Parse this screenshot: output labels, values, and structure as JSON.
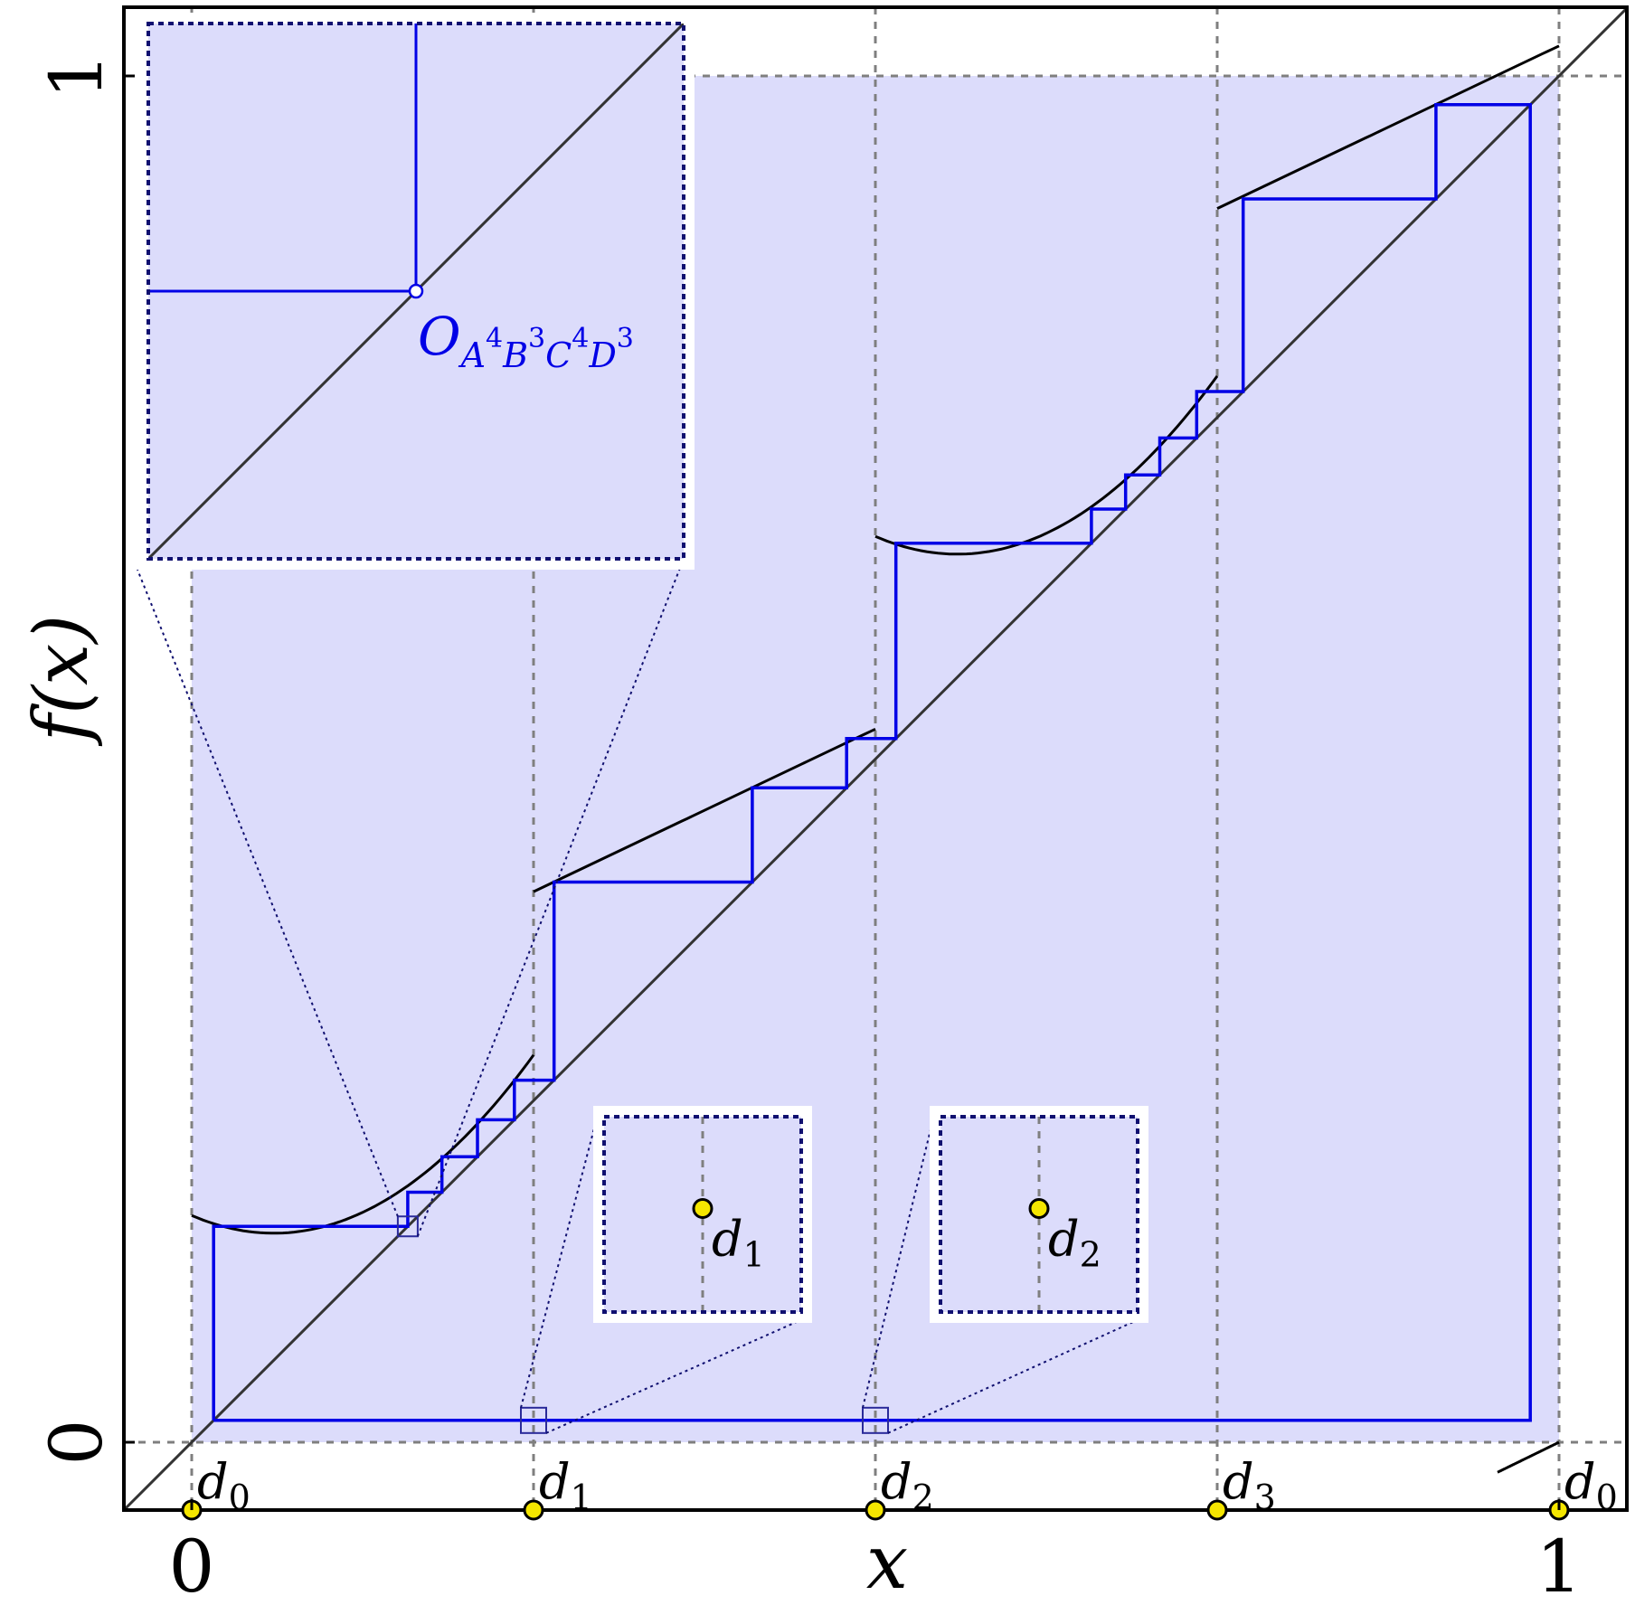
{
  "chart_data": {
    "type": "line",
    "xlabel": "x",
    "ylabel": "f(x)",
    "xlim": [
      -0.05,
      1.05
    ],
    "ylim": [
      -0.05,
      1.05
    ],
    "x_ticks": [
      {
        "value": 0,
        "label": "0"
      },
      {
        "value": 1,
        "label": "1"
      }
    ],
    "y_ticks": [
      {
        "value": 0,
        "label": "0"
      },
      {
        "value": 1,
        "label": "1"
      }
    ],
    "grid": "dashed lines at x = d_i and y = 0, 1",
    "region_fill": "#dcdcfb",
    "map_color": "#000000",
    "orbit_color": "#0000e6",
    "point_color": "#f5e600",
    "discontinuities": [
      {
        "x": 0.0,
        "label_base": "d",
        "label_sub": "0"
      },
      {
        "x": 0.25,
        "label_base": "d",
        "label_sub": "1"
      },
      {
        "x": 0.5,
        "label_base": "d",
        "label_sub": "2"
      },
      {
        "x": 0.75,
        "label_base": "d",
        "label_sub": "3"
      },
      {
        "x": 1.0,
        "label_base": "d",
        "label_sub": "0"
      }
    ],
    "diagonal": [
      [
        -0.05,
        -0.05
      ],
      [
        1.05,
        1.05
      ]
    ],
    "map_branches": [
      {
        "name": "A",
        "kind": "quadratic",
        "x": [
          0.0,
          0.25
        ],
        "f_at_0": 0.166,
        "vertex_x": 0.06,
        "vertex_y": 0.153,
        "f_at_end": 0.291
      },
      {
        "name": "B",
        "kind": "linear",
        "x": [
          0.25,
          0.5
        ],
        "y": [
          0.403,
          0.522
        ]
      },
      {
        "name": "C",
        "kind": "quadratic",
        "x": [
          0.5,
          0.75
        ],
        "f_at_0": 0.663,
        "vertex_x": 0.56,
        "vertex_y": 0.65,
        "f_at_end": 0.791
      },
      {
        "name": "D",
        "kind": "linear",
        "x": [
          0.75,
          1.0
        ],
        "y": [
          0.903,
          1.022
        ]
      },
      {
        "name": "wrap",
        "kind": "linear",
        "x": [
          0.955,
          1.0
        ],
        "y": [
          -0.022,
          0.0
        ]
      }
    ],
    "cobweb_orbit": {
      "label": "O",
      "label_subscript": [
        {
          "letter": "A",
          "power": "4"
        },
        {
          "letter": "B",
          "power": "3"
        },
        {
          "letter": "C",
          "power": "4"
        },
        {
          "letter": "D",
          "power": "3"
        }
      ],
      "points": [
        [
          0.016,
          0.016
        ],
        [
          0.016,
          0.158
        ],
        [
          0.158,
          0.158
        ],
        [
          0.158,
          0.183
        ],
        [
          0.183,
          0.183
        ],
        [
          0.183,
          0.209
        ],
        [
          0.209,
          0.209
        ],
        [
          0.209,
          0.236
        ],
        [
          0.236,
          0.236
        ],
        [
          0.236,
          0.265
        ],
        [
          0.265,
          0.265
        ],
        [
          0.265,
          0.41
        ],
        [
          0.41,
          0.41
        ],
        [
          0.41,
          0.479
        ],
        [
          0.479,
          0.479
        ],
        [
          0.479,
          0.515
        ],
        [
          0.515,
          0.515
        ],
        [
          0.515,
          0.658
        ],
        [
          0.658,
          0.658
        ],
        [
          0.658,
          0.683
        ],
        [
          0.683,
          0.683
        ],
        [
          0.683,
          0.708
        ],
        [
          0.708,
          0.708
        ],
        [
          0.708,
          0.735
        ],
        [
          0.735,
          0.735
        ],
        [
          0.735,
          0.769
        ],
        [
          0.769,
          0.769
        ],
        [
          0.769,
          0.91
        ],
        [
          0.91,
          0.91
        ],
        [
          0.91,
          0.979
        ],
        [
          0.979,
          0.979
        ],
        [
          0.979,
          0.016
        ],
        [
          0.016,
          0.016
        ]
      ]
    },
    "insets": [
      {
        "name": "orbit-zoom",
        "center": [
          0.158,
          0.158
        ],
        "half_width": 0.007,
        "annotation": "orbit point"
      },
      {
        "name": "d1-zoom",
        "center": [
          0.25,
          0.016
        ],
        "half_width": 0.01,
        "point": "d1"
      },
      {
        "name": "d2-zoom",
        "center": [
          0.5,
          0.016
        ],
        "half_width": 0.01,
        "point": "d2"
      }
    ],
    "inset_labels": {
      "d1": {
        "base": "d",
        "sub": "1"
      },
      "d2": {
        "base": "d",
        "sub": "2"
      }
    }
  }
}
